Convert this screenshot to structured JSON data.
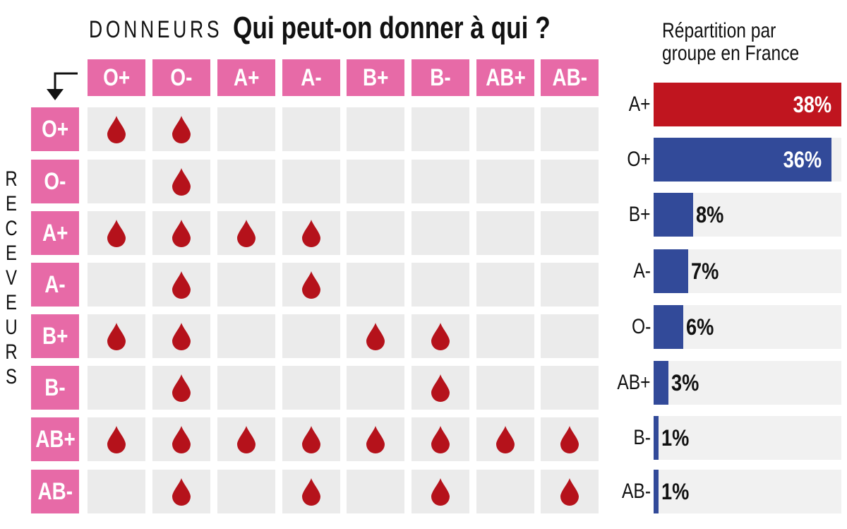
{
  "header": {
    "donneurs": "DONNEURS",
    "title": "Qui peut-on donner à qui ?",
    "receveurs": "RECEVEURS"
  },
  "matrix": {
    "donors": [
      "O+",
      "O-",
      "A+",
      "A-",
      "B+",
      "B-",
      "AB+",
      "AB-"
    ],
    "recipients": [
      "O+",
      "O-",
      "A+",
      "A-",
      "B+",
      "B-",
      "AB+",
      "AB-"
    ],
    "compatibility": [
      [
        1,
        1,
        0,
        0,
        0,
        0,
        0,
        0
      ],
      [
        0,
        1,
        0,
        0,
        0,
        0,
        0,
        0
      ],
      [
        1,
        1,
        1,
        1,
        0,
        0,
        0,
        0
      ],
      [
        0,
        1,
        0,
        1,
        0,
        0,
        0,
        0
      ],
      [
        1,
        1,
        0,
        0,
        1,
        1,
        0,
        0
      ],
      [
        0,
        1,
        0,
        0,
        0,
        1,
        0,
        0
      ],
      [
        1,
        1,
        1,
        1,
        1,
        1,
        1,
        1
      ],
      [
        0,
        1,
        0,
        1,
        0,
        1,
        0,
        1
      ]
    ],
    "drop_color": "#b5121b",
    "header_color": "#e76aa7"
  },
  "chart_data": {
    "type": "bar",
    "orientation": "horizontal",
    "title": "Répartition par groupe en France",
    "categories": [
      "A+",
      "O+",
      "B+",
      "A-",
      "O-",
      "AB+",
      "B-",
      "AB-"
    ],
    "values": [
      38,
      36,
      8,
      7,
      6,
      3,
      1,
      1
    ],
    "value_labels": [
      "38%",
      "36%",
      "8%",
      "7%",
      "6%",
      "3%",
      "1%",
      "1%"
    ],
    "colors": [
      "#c0151f",
      "#324a99",
      "#324a99",
      "#324a99",
      "#324a99",
      "#324a99",
      "#324a99",
      "#324a99"
    ],
    "xlim": [
      0,
      38
    ]
  }
}
